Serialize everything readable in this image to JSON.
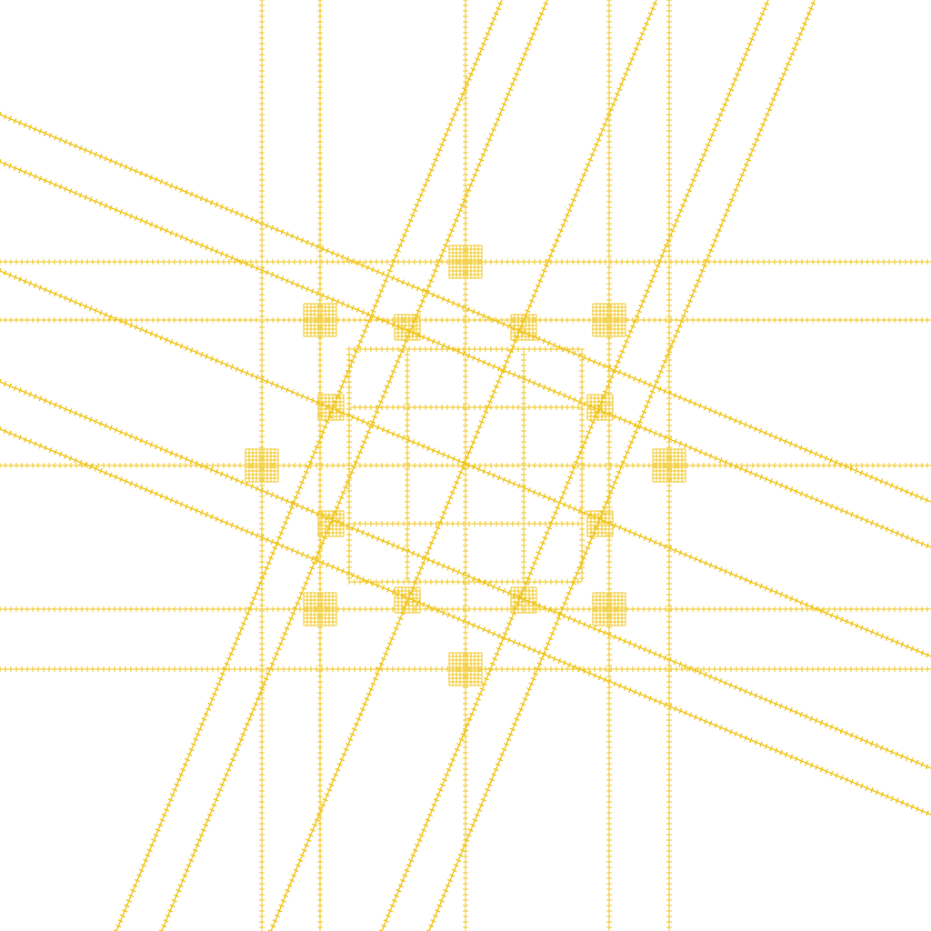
{
  "figure": {
    "description_kind": "line-pattern",
    "colors": {
      "background": "#ffffff",
      "stroke": "#f0c419"
    }
  }
}
